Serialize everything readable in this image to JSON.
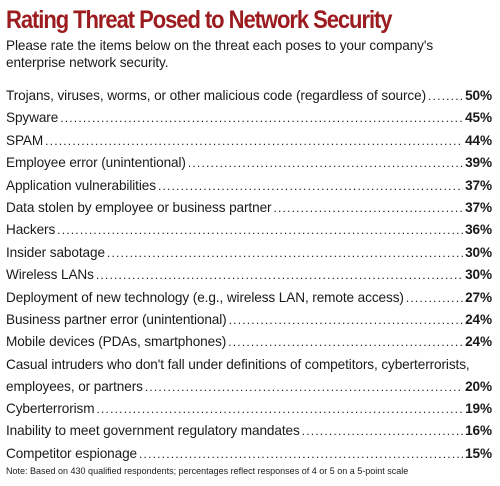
{
  "title": "Rating Threat Posed to Network Security",
  "intro": "Please rate the items below on the threat each poses to your company's enterprise network security.",
  "items": [
    {
      "label": "Trojans, viruses, worms, or other malicious code (regardless of source)",
      "value": "50%"
    },
    {
      "label": "Spyware",
      "value": "45%"
    },
    {
      "label": "SPAM",
      "value": "44%"
    },
    {
      "label": "Employee error (unintentional)",
      "value": "39%"
    },
    {
      "label": "Application vulnerabilities",
      "value": "37%"
    },
    {
      "label": "Data stolen by employee or business partner",
      "value": "37%"
    },
    {
      "label": "Hackers",
      "value": "36%"
    },
    {
      "label": "Insider sabotage",
      "value": "30%"
    },
    {
      "label": "Wireless LANs",
      "value": "30%"
    },
    {
      "label": "Deployment of new technology (e.g., wireless LAN, remote access)",
      "value": "27%"
    },
    {
      "label": "Business partner error (unintentional)",
      "value": "24%"
    },
    {
      "label": "Mobile devices (PDAs, smartphones)",
      "value": "24%"
    },
    {
      "label_line1": "Casual intruders who don't fall under definitions of competitors, cyberterrorists,",
      "label": "employees, or partners",
      "value": "20%"
    },
    {
      "label": "Cyberterrorism",
      "value": "19%"
    },
    {
      "label": "Inability to meet government regulatory mandates",
      "value": "16%"
    },
    {
      "label": "Competitor espionage",
      "value": "15%"
    }
  ],
  "note": "Note: Based on 430 qualified respondents; percentages reflect responses of 4 or 5 on a 5-point scale"
}
